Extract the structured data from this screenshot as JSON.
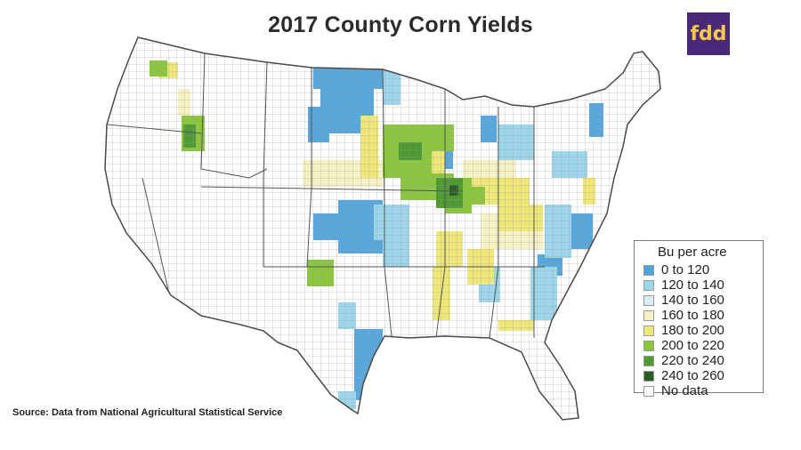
{
  "title": "2017 County Corn Yields",
  "brand": {
    "text": "fdd",
    "bg": "#4a2a78",
    "fg": "#f2c94c"
  },
  "source": "Source:  Data from National Agricultural Statistical Service",
  "legend": {
    "title": "Bu per acre",
    "items": [
      {
        "label": "0 to 120",
        "color": "#4fa3dc"
      },
      {
        "label": "120 to 140",
        "color": "#9dd5ea"
      },
      {
        "label": "140 to 160",
        "color": "#d8eef5"
      },
      {
        "label": "160 to 180",
        "color": "#f6f1c4"
      },
      {
        "label": "180 to 200",
        "color": "#eee87a"
      },
      {
        "label": "200 to 220",
        "color": "#8cc63f"
      },
      {
        "label": "220 to 240",
        "color": "#4e9b32"
      },
      {
        "label": "240 to 260",
        "color": "#2d5e23"
      },
      {
        "label": "No data",
        "color": "#ffffff"
      }
    ]
  }
}
